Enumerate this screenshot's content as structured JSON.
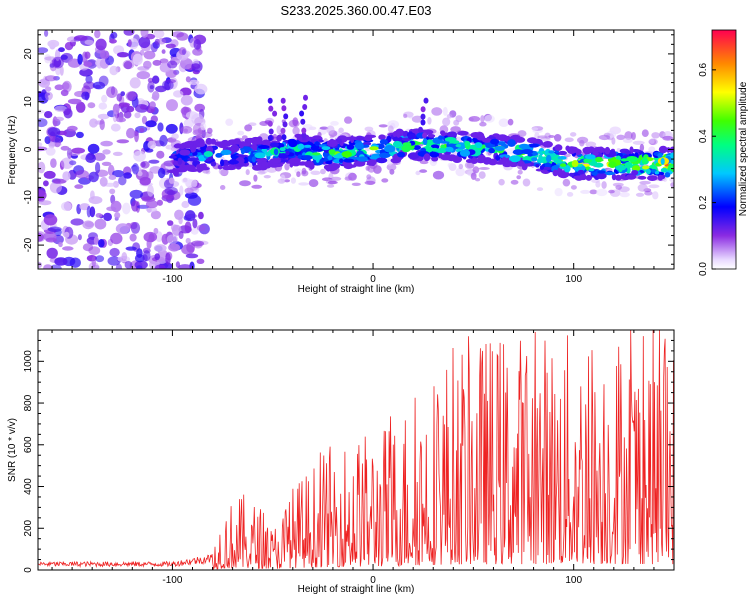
{
  "title": "S233.2025.360.00.47.E03",
  "chart_data": [
    {
      "type": "heatmap",
      "xlabel": "Height of straight line (km)",
      "ylabel": "Frequency (Hz)",
      "xlim": [
        -167,
        150
      ],
      "ylim": [
        -25,
        25
      ],
      "xticks": [
        -100,
        0,
        100
      ],
      "yticks": [
        -20,
        -10,
        0,
        10,
        20
      ],
      "colorbar": {
        "label": "Normalized spectral amplitude",
        "range": [
          0.0,
          0.72
        ],
        "ticks": [
          0.0,
          0.2,
          0.4,
          0.6
        ],
        "tick_labels": [
          "0.0",
          "0.2",
          "0.4",
          "0.6"
        ]
      },
      "ridge": {
        "x": [
          -100,
          -80,
          -60,
          -40,
          -20,
          0,
          20,
          40,
          60,
          80,
          100,
          120,
          145
        ],
        "center_freq": [
          -2,
          -1,
          -1,
          0,
          -1,
          0,
          1,
          1,
          0,
          -1,
          -3,
          -3,
          -3
        ],
        "amplitude": [
          0.25,
          0.3,
          0.3,
          0.35,
          0.45,
          0.45,
          0.4,
          0.45,
          0.4,
          0.45,
          0.5,
          0.5,
          0.6
        ]
      },
      "noise_region": {
        "x_from": -167,
        "x_to": -90,
        "amplitude": 0.15
      }
    },
    {
      "type": "line",
      "xlabel": "Height of straight line (km)",
      "ylabel": "SNR (10 * v/v)",
      "xlim": [
        -167,
        150
      ],
      "ylim": [
        0,
        1150
      ],
      "xticks": [
        -100,
        0,
        100
      ],
      "yticks": [
        0,
        200,
        400,
        600,
        800,
        1000
      ],
      "color": "#ee2222",
      "envelope": {
        "x": [
          -167,
          -100,
          -80,
          -75,
          -65,
          -55,
          -50,
          -40,
          -30,
          -20,
          -10,
          0,
          10,
          20,
          30,
          40,
          60,
          80,
          100,
          120,
          150
        ],
        "y": [
          30,
          30,
          60,
          150,
          180,
          150,
          100,
          200,
          250,
          300,
          320,
          330,
          360,
          420,
          480,
          540,
          560,
          570,
          560,
          580,
          560
        ]
      }
    }
  ]
}
